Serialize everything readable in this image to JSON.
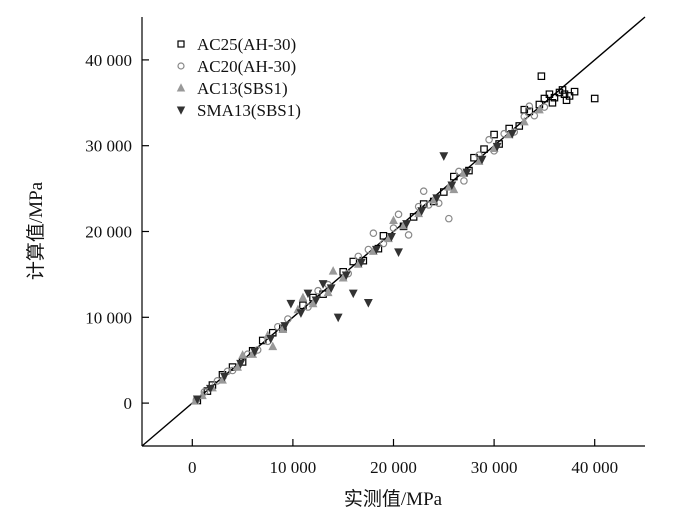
{
  "chart_data": {
    "type": "scatter",
    "title": "",
    "xlabel": "实测值/MPa",
    "ylabel": "计算值/MPa",
    "xlim": [
      -5000,
      45000
    ],
    "ylim": [
      -5000,
      45000
    ],
    "xticks": [
      0,
      10000,
      20000,
      30000,
      40000
    ],
    "yticks": [
      0,
      10000,
      20000,
      30000,
      40000
    ],
    "xtick_labels": [
      "0",
      "10 000",
      "20 000",
      "30 000",
      "40 000"
    ],
    "ytick_labels": [
      "0",
      "10 000",
      "20 000",
      "30 000",
      "40 000"
    ],
    "reference_line": {
      "type": "y=x"
    },
    "legend_position": "top-left",
    "series": [
      {
        "name": "AC25(AH-30)",
        "marker": "square",
        "color": "#000000",
        "points": [
          [
            500,
            300
          ],
          [
            1500,
            1400
          ],
          [
            3000,
            3300
          ],
          [
            5000,
            4800
          ],
          [
            7000,
            7300
          ],
          [
            9000,
            8700
          ],
          [
            11000,
            11400
          ],
          [
            13000,
            12700
          ],
          [
            15000,
            15300
          ],
          [
            17000,
            16600
          ],
          [
            19000,
            19500
          ],
          [
            21000,
            20600
          ],
          [
            23000,
            23200
          ],
          [
            24000,
            23500
          ],
          [
            26000,
            26400
          ],
          [
            27500,
            27100
          ],
          [
            29000,
            29600
          ],
          [
            30500,
            30200
          ],
          [
            31500,
            32000
          ],
          [
            32500,
            32300
          ],
          [
            33500,
            34000
          ],
          [
            34500,
            34800
          ],
          [
            35000,
            35500
          ],
          [
            35500,
            36000
          ],
          [
            36000,
            35600
          ],
          [
            36500,
            36200
          ],
          [
            37000,
            36000
          ],
          [
            37500,
            35800
          ],
          [
            38000,
            36300
          ],
          [
            34700,
            38100
          ],
          [
            40000,
            35500
          ],
          [
            33000,
            34200
          ],
          [
            28000,
            28600
          ],
          [
            22000,
            21700
          ],
          [
            18500,
            18000
          ],
          [
            16000,
            16500
          ],
          [
            12000,
            12300
          ],
          [
            8000,
            8200
          ],
          [
            6000,
            6100
          ],
          [
            4000,
            4200
          ],
          [
            2000,
            2100
          ],
          [
            25000,
            24600
          ],
          [
            30000,
            31300
          ],
          [
            35800,
            35000
          ],
          [
            36800,
            36500
          ],
          [
            37200,
            35300
          ]
        ]
      },
      {
        "name": "AC20(AH-30)",
        "marker": "circle",
        "color": "#888888",
        "points": [
          [
            400,
            350
          ],
          [
            1200,
            1300
          ],
          [
            2500,
            2600
          ],
          [
            4000,
            3800
          ],
          [
            5500,
            5700
          ],
          [
            7500,
            7200
          ],
          [
            9500,
            9800
          ],
          [
            11500,
            11200
          ],
          [
            13500,
            13800
          ],
          [
            15500,
            15100
          ],
          [
            17500,
            17900
          ],
          [
            18000,
            19800
          ],
          [
            19000,
            18600
          ],
          [
            20000,
            20400
          ],
          [
            21500,
            19600
          ],
          [
            22500,
            22900
          ],
          [
            23500,
            23100
          ],
          [
            24500,
            23300
          ],
          [
            25500,
            21500
          ],
          [
            26500,
            27000
          ],
          [
            27000,
            25900
          ],
          [
            28500,
            28900
          ],
          [
            30000,
            29400
          ],
          [
            31000,
            31400
          ],
          [
            32000,
            31600
          ],
          [
            33000,
            33400
          ],
          [
            34000,
            33500
          ],
          [
            35000,
            34500
          ],
          [
            23000,
            24700
          ],
          [
            20500,
            22000
          ],
          [
            16500,
            17100
          ],
          [
            12500,
            13100
          ],
          [
            8500,
            8900
          ],
          [
            6500,
            6200
          ],
          [
            3500,
            3700
          ],
          [
            33500,
            34600
          ],
          [
            29500,
            30700
          ]
        ]
      },
      {
        "name": "AC13(SBS1)",
        "marker": "triangle-up",
        "color": "#999999",
        "points": [
          [
            300,
            250
          ],
          [
            1000,
            900
          ],
          [
            2000,
            1800
          ],
          [
            3000,
            2700
          ],
          [
            4500,
            4200
          ],
          [
            6000,
            5700
          ],
          [
            7500,
            7900
          ],
          [
            9000,
            8600
          ],
          [
            10500,
            10900
          ],
          [
            12000,
            11600
          ],
          [
            13500,
            12900
          ],
          [
            15000,
            14600
          ],
          [
            16500,
            16200
          ],
          [
            18000,
            17700
          ],
          [
            19500,
            19200
          ],
          [
            21000,
            20700
          ],
          [
            22500,
            22100
          ],
          [
            24000,
            23700
          ],
          [
            25500,
            25200
          ],
          [
            27000,
            26800
          ],
          [
            28500,
            28200
          ],
          [
            30000,
            29700
          ],
          [
            31500,
            31300
          ],
          [
            33000,
            32800
          ],
          [
            34500,
            34200
          ],
          [
            14000,
            15400
          ],
          [
            11000,
            12300
          ],
          [
            8000,
            6600
          ],
          [
            5000,
            5600
          ],
          [
            26000,
            24900
          ],
          [
            20000,
            21300
          ]
        ]
      },
      {
        "name": "SMA13(SBS1)",
        "marker": "triangle-down",
        "color": "#333333",
        "points": [
          [
            500,
            450
          ],
          [
            1800,
            1700
          ],
          [
            3200,
            3100
          ],
          [
            4800,
            4600
          ],
          [
            6200,
            6000
          ],
          [
            7800,
            7500
          ],
          [
            9200,
            9000
          ],
          [
            10800,
            10500
          ],
          [
            12300,
            12000
          ],
          [
            13800,
            13400
          ],
          [
            14500,
            10000
          ],
          [
            15300,
            14900
          ],
          [
            16800,
            16400
          ],
          [
            17500,
            11700
          ],
          [
            18300,
            17900
          ],
          [
            19800,
            19400
          ],
          [
            21300,
            20900
          ],
          [
            22800,
            22400
          ],
          [
            24300,
            23900
          ],
          [
            25800,
            25400
          ],
          [
            27300,
            26900
          ],
          [
            28800,
            28400
          ],
          [
            30300,
            29900
          ],
          [
            31800,
            31400
          ],
          [
            25000,
            28800
          ],
          [
            11500,
            12800
          ],
          [
            9800,
            11600
          ],
          [
            13000,
            13900
          ],
          [
            16000,
            12800
          ],
          [
            20500,
            17600
          ]
        ]
      }
    ]
  }
}
